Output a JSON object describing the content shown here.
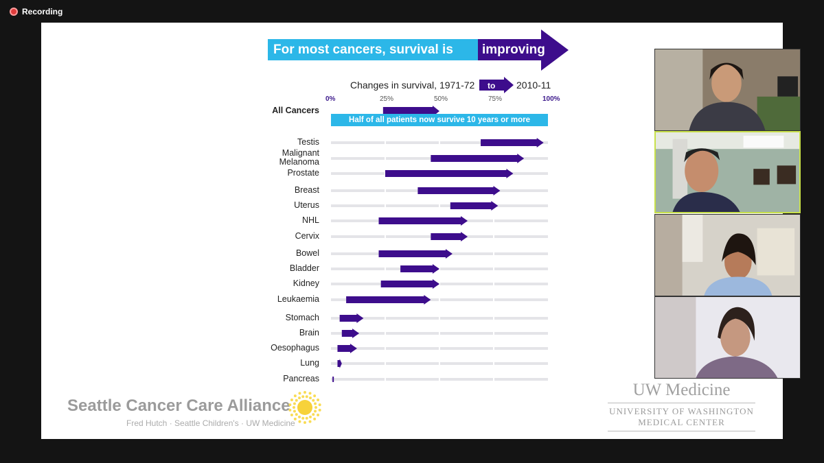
{
  "recording": {
    "label": "Recording"
  },
  "slide": {
    "banner": {
      "lead": "For most cancers, survival is",
      "highlight": "improving"
    },
    "subtitle": {
      "prefix": "Changes in survival, 1971-72",
      "to": "to",
      "suffix": "2010-11"
    },
    "all_cancers_label": "All Cancers",
    "half_note": "Half of all patients now survive 10 years or more",
    "logos": {
      "scca_name": "Seattle Cancer Care Alliance",
      "scca_sub": "Fred Hutch · Seattle Children's · UW Medicine",
      "uw_name": "UW Medicine",
      "uw_sub1": "UNIVERSITY OF WASHINGTON",
      "uw_sub2": "MEDICAL CENTER"
    }
  },
  "chart_data": {
    "type": "bar",
    "title": "Changes in survival, 1971-72 to 2010-11",
    "xlabel": "",
    "ylabel": "",
    "xlim": [
      0,
      100
    ],
    "ticks": [
      "0%",
      "25%",
      "50%",
      "75%",
      "100%"
    ],
    "all_cancers": {
      "start": 24,
      "end": 50
    },
    "categories": [
      "Testis",
      "Malignant Melanoma",
      "Prostate",
      "Breast",
      "Uterus",
      "NHL",
      "Cervix",
      "Bowel",
      "Bladder",
      "Kidney",
      "Leukaemia",
      "Stomach",
      "Brain",
      "Oesophagus",
      "Lung",
      "Pancreas"
    ],
    "series": [
      {
        "name": "1971-72",
        "values": [
          69,
          46,
          25,
          40,
          55,
          22,
          46,
          22,
          32,
          23,
          7,
          4,
          5,
          3,
          3,
          1
        ]
      },
      {
        "name": "2010-11",
        "values": [
          98,
          89,
          84,
          78,
          77,
          63,
          63,
          56,
          50,
          50,
          46,
          15,
          13,
          12,
          5,
          1
        ]
      }
    ],
    "colors": {
      "arrow": "#3d0d8c",
      "track": "#e4e4e8",
      "banner": "#2cb7e8"
    }
  },
  "participants": [
    {
      "name": "participant-1",
      "active": false
    },
    {
      "name": "participant-2",
      "active": true
    },
    {
      "name": "participant-3",
      "active": false
    },
    {
      "name": "participant-4",
      "active": false
    }
  ]
}
